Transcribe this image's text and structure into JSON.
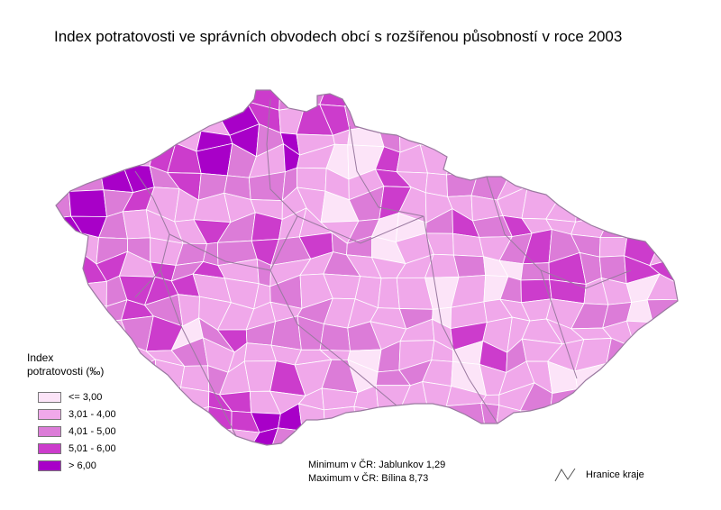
{
  "title": "Index potratovosti ve správních obvodech obcí s rozšířenou působností v roce 2003",
  "legend": {
    "title_line1": "Index",
    "title_line2": "potratovosti (‰)",
    "classes": [
      {
        "label": "<= 3,00",
        "color": "#fce4f8"
      },
      {
        "label": "3,01 - 4,00",
        "color": "#f0a8ea"
      },
      {
        "label": "4,01 - 5,00",
        "color": "#dc7cd8"
      },
      {
        "label": "5,01 - 6,00",
        "color": "#cc3ccc"
      },
      {
        "label": "> 6,00",
        "color": "#a800c8"
      }
    ]
  },
  "stats": {
    "minimum": "Minimum v ČR: Jablunkov 1,29",
    "maximum": "Maximum v ČR: Bílina 8,73"
  },
  "boundary_legend": {
    "label": "Hranice kraje",
    "icon": "boundary-line-icon"
  },
  "colors": {
    "region_border": "#ffffff",
    "kraj_border": "#9a7aa0"
  }
}
